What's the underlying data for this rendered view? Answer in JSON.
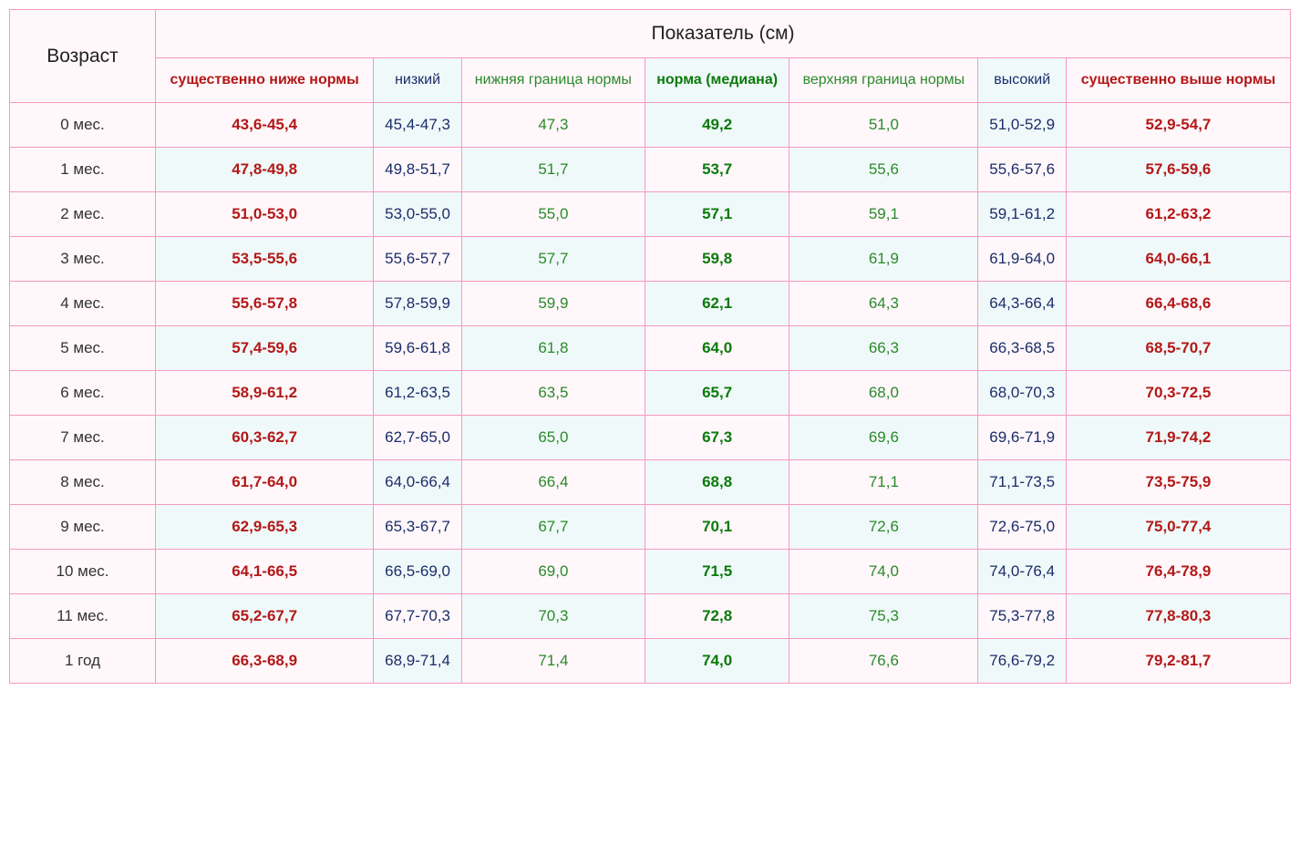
{
  "table": {
    "headers": {
      "age": "Возраст",
      "main": "Показатель (см)",
      "columns": [
        "существенно ниже нормы",
        "низкий",
        "нижняя граница нормы",
        "норма (медиана)",
        "верхняя граница нормы",
        "высокий",
        "существенно выше нормы"
      ]
    },
    "column_styles": [
      {
        "class": "sub-red",
        "cell_class": "val-red"
      },
      {
        "class": "sub-navy",
        "cell_class": "val-navy"
      },
      {
        "class": "sub-green",
        "cell_class": "val-green"
      },
      {
        "class": "sub-green-bold",
        "cell_class": "val-green-bold"
      },
      {
        "class": "sub-green",
        "cell_class": "val-green"
      },
      {
        "class": "sub-navy",
        "cell_class": "val-navy"
      },
      {
        "class": "sub-red",
        "cell_class": "val-red"
      }
    ],
    "rows": [
      {
        "age": "0 мес.",
        "values": [
          "43,6-45,4",
          "45,4-47,3",
          "47,3",
          "49,2",
          "51,0",
          "51,0-52,9",
          "52,9-54,7"
        ]
      },
      {
        "age": "1 мес.",
        "values": [
          "47,8-49,8",
          "49,8-51,7",
          "51,7",
          "53,7",
          "55,6",
          "55,6-57,6",
          "57,6-59,6"
        ]
      },
      {
        "age": "2 мес.",
        "values": [
          "51,0-53,0",
          "53,0-55,0",
          "55,0",
          "57,1",
          "59,1",
          "59,1-61,2",
          "61,2-63,2"
        ]
      },
      {
        "age": "3 мес.",
        "values": [
          "53,5-55,6",
          "55,6-57,7",
          "57,7",
          "59,8",
          "61,9",
          "61,9-64,0",
          "64,0-66,1"
        ]
      },
      {
        "age": "4 мес.",
        "values": [
          "55,6-57,8",
          "57,8-59,9",
          "59,9",
          "62,1",
          "64,3",
          "64,3-66,4",
          "66,4-68,6"
        ]
      },
      {
        "age": "5 мес.",
        "values": [
          "57,4-59,6",
          "59,6-61,8",
          "61,8",
          "64,0",
          "66,3",
          "66,3-68,5",
          "68,5-70,7"
        ]
      },
      {
        "age": "6 мес.",
        "values": [
          "58,9-61,2",
          "61,2-63,5",
          "63,5",
          "65,7",
          "68,0",
          "68,0-70,3",
          "70,3-72,5"
        ]
      },
      {
        "age": "7 мес.",
        "values": [
          "60,3-62,7",
          "62,7-65,0",
          "65,0",
          "67,3",
          "69,6",
          "69,6-71,9",
          "71,9-74,2"
        ]
      },
      {
        "age": "8 мес.",
        "values": [
          "61,7-64,0",
          "64,0-66,4",
          "66,4",
          "68,8",
          "71,1",
          "71,1-73,5",
          "73,5-75,9"
        ]
      },
      {
        "age": "9 мес.",
        "values": [
          "62,9-65,3",
          "65,3-67,7",
          "67,7",
          "70,1",
          "72,6",
          "72,6-75,0",
          "75,0-77,4"
        ]
      },
      {
        "age": "10 мес.",
        "values": [
          "64,1-66,5",
          "66,5-69,0",
          "69,0",
          "71,5",
          "74,0",
          "74,0-76,4",
          "76,4-78,9"
        ]
      },
      {
        "age": "11 мес.",
        "values": [
          "65,2-67,7",
          "67,7-70,3",
          "70,3",
          "72,8",
          "75,3",
          "75,3-77,8",
          "77,8-80,3"
        ]
      },
      {
        "age": "1 год",
        "values": [
          "66,3-68,9",
          "68,9-71,4",
          "71,4",
          "74,0",
          "76,6",
          "76,6-79,2",
          "79,2-81,7"
        ]
      }
    ],
    "colors": {
      "border": "#f49ac0",
      "bg_pink": "#fff7fa",
      "bg_teal": "#f0f9f9",
      "text_red": "#b31818",
      "text_navy": "#1a2d6b",
      "text_green": "#2a8a2a",
      "text_green_bold": "#0a7a0a",
      "text_default": "#222222"
    },
    "font_sizes": {
      "header_main": 21,
      "header_sub": 16,
      "cell": 17
    }
  }
}
